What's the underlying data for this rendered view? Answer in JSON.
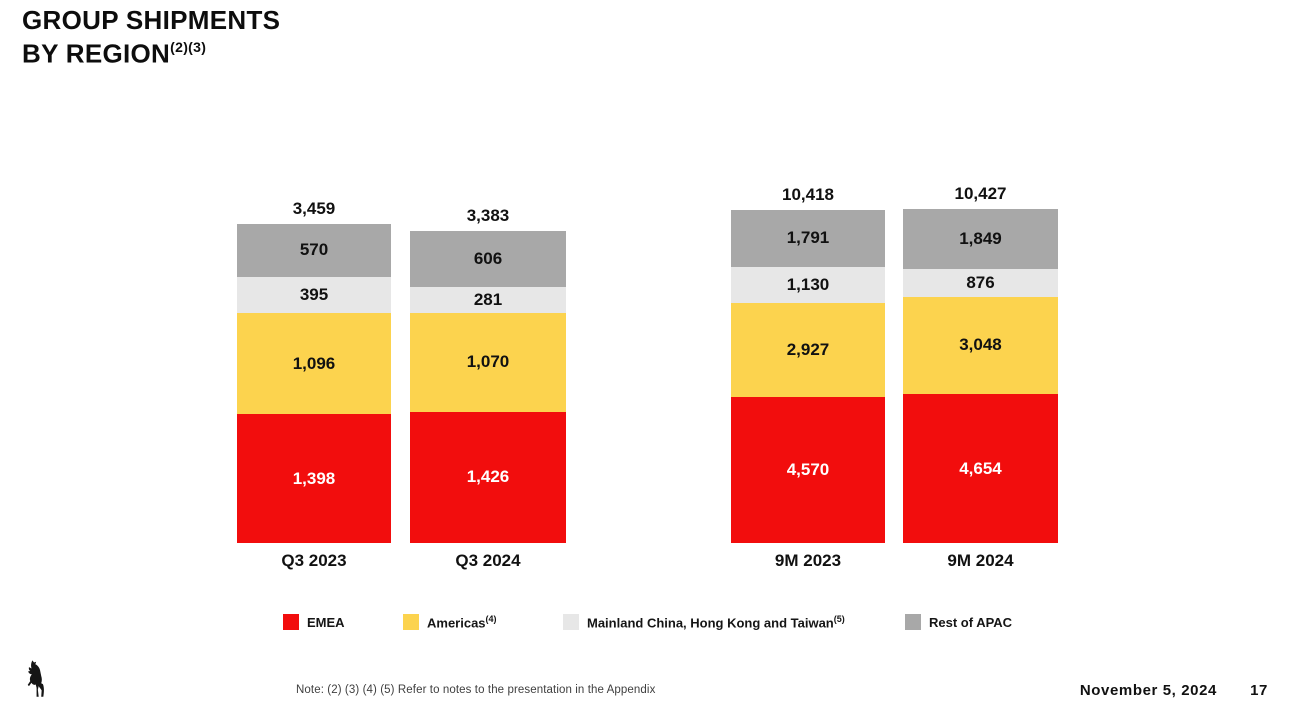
{
  "title": {
    "line1": "GROUP SHIPMENTS",
    "line2": "BY REGION",
    "line2_superscript": "(2)(3)"
  },
  "colors": {
    "emea_red": "#f20d0d",
    "americas_yellow": "#fcd34e",
    "china_light_gray": "#e7e7e7",
    "apac_dark_gray": "#a8a8a8",
    "background": "#ffffff"
  },
  "chart_data": {
    "type": "bar",
    "stacked": true,
    "grid": false,
    "axes_lines": false,
    "legend_position": "bottom",
    "value_labels": "inside-segments",
    "total_labels": "above-bars",
    "groups": [
      {
        "categories": [
          "Q3 2023",
          "Q3 2024"
        ],
        "totals": [
          3459,
          3383
        ],
        "series": [
          {
            "name": "EMEA",
            "color": "#f20d0d",
            "label_color": "#ffffff",
            "values": [
              1398,
              1426
            ]
          },
          {
            "name": "Americas",
            "color": "#fcd34e",
            "label_color": "#111111",
            "values": [
              1096,
              1070
            ]
          },
          {
            "name": "Mainland China, Hong Kong and Taiwan",
            "color": "#e7e7e7",
            "label_color": "#111111",
            "values": [
              395,
              281
            ]
          },
          {
            "name": "Rest of APAC",
            "color": "#a8a8a8",
            "label_color": "#111111",
            "values": [
              570,
              606
            ]
          }
        ]
      },
      {
        "categories": [
          "9M 2023",
          "9M 2024"
        ],
        "totals": [
          10418,
          10427
        ],
        "series": [
          {
            "name": "EMEA",
            "color": "#f20d0d",
            "label_color": "#ffffff",
            "values": [
              4570,
              4654
            ]
          },
          {
            "name": "Americas",
            "color": "#fcd34e",
            "label_color": "#111111",
            "values": [
              2927,
              3048
            ]
          },
          {
            "name": "Mainland China, Hong Kong and Taiwan",
            "color": "#e7e7e7",
            "label_color": "#111111",
            "values": [
              1130,
              876
            ]
          },
          {
            "name": "Rest of APAC",
            "color": "#a8a8a8",
            "label_color": "#111111",
            "values": [
              1791,
              1849
            ]
          }
        ]
      }
    ]
  },
  "legend": {
    "items": [
      {
        "label": "EMEA",
        "superscript": "",
        "color": "#f20d0d"
      },
      {
        "label": "Americas",
        "superscript": "(4)",
        "color": "#fcd34e"
      },
      {
        "label": "Mainland China, Hong Kong and Taiwan",
        "superscript": "(5)",
        "color": "#e7e7e7"
      },
      {
        "label": "Rest of APAC",
        "superscript": "",
        "color": "#a8a8a8"
      }
    ]
  },
  "footer": {
    "note": "Note: (2) (3) (4) (5) Refer to notes to the presentation in the Appendix",
    "date": "November 5, 2024",
    "page_number": "17",
    "logo_icon": "ferrari-prancing-horse"
  }
}
